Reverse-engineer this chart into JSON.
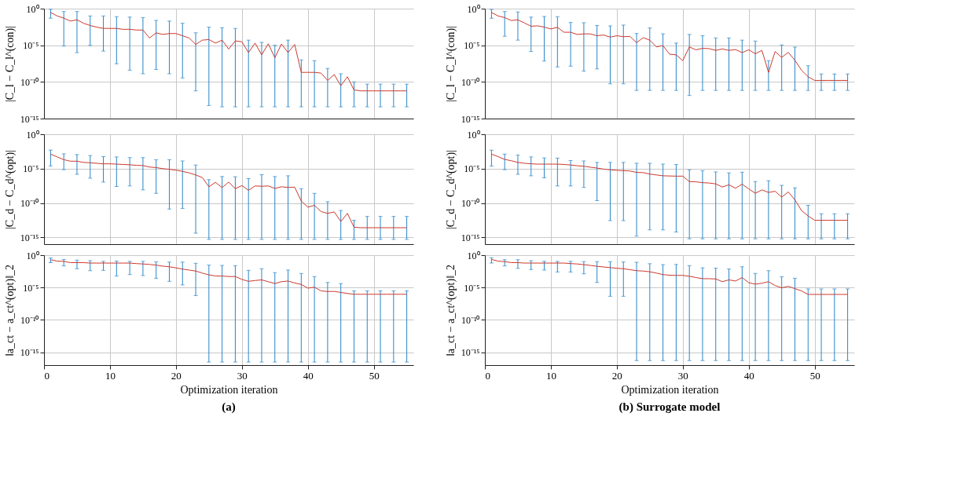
{
  "chart_data": [
    {
      "type": "line",
      "x": [
        1,
        2,
        3,
        4,
        5,
        6,
        7,
        8,
        9,
        10,
        11,
        12,
        13,
        14,
        15,
        16,
        17,
        18,
        19,
        20,
        21,
        22,
        23,
        24,
        25,
        26,
        27,
        28,
        29,
        30,
        31,
        32,
        33,
        34,
        35,
        36,
        37,
        38,
        39,
        40,
        41,
        42,
        43,
        44,
        45,
        46,
        47,
        48,
        49,
        50,
        51,
        52,
        53,
        54,
        55
      ],
      "xlim": [
        0,
        56
      ],
      "xticks": [
        0,
        10,
        20,
        30,
        40,
        50
      ],
      "ylim": [
        1e-15,
        1
      ],
      "yticks": [
        {
          "value": 1,
          "label": "10⁰"
        },
        {
          "value": 1e-05,
          "label": "10⁻⁵"
        },
        {
          "value": 1e-10,
          "label": "10⁻¹⁰"
        },
        {
          "value": 1e-15,
          "label": "10⁻¹⁵"
        }
      ],
      "log": "y",
      "grid": true,
      "tick_labels": "y",
      "ylabel": "|C_l − C_l^(con)|",
      "series": [
        {
          "color": "#cc3a2e",
          "values": [
            0.3,
            0.1,
            0.05,
            0.02,
            0.03,
            0.01,
            0.005,
            0.003,
            0.002,
            0.002,
            0.002,
            0.0015,
            0.0015,
            0.0012,
            0.0012,
            0.0001,
            0.0005,
            0.0003,
            0.0004,
            0.0004,
            0.0002,
            0.0001,
            1.3e-05,
            5e-05,
            6e-05,
            2e-05,
            5e-05,
            3e-06,
            4e-05,
            3e-05,
            1e-06,
            2e-05,
            5e-07,
            1.6e-05,
            2e-07,
            1.5e-05,
            1e-06,
            1.3e-05,
            2e-09,
            2e-09,
            2e-09,
            1.6e-09,
            1.6e-10,
            1e-09,
            3e-11,
            5e-10,
            8e-12,
            6e-12,
            6e-12,
            6e-12,
            6e-12,
            6e-12,
            6e-12,
            6e-12,
            6e-12
          ],
          "errors": [
            [
              0.05,
              0.8
            ],
            null,
            [
              8e-06,
              0.4
            ],
            null,
            [
              1e-06,
              0.4
            ],
            null,
            [
              1e-05,
              0.1
            ],
            null,
            [
              1.6e-06,
              0.1
            ],
            null,
            [
              3e-08,
              0.08
            ],
            null,
            [
              4e-09,
              0.07
            ],
            null,
            [
              1.3e-09,
              0.06
            ],
            null,
            [
              5e-09,
              0.025
            ],
            null,
            [
              1.3e-09,
              0.02
            ],
            null,
            [
              3.5e-10,
              0.01
            ],
            null,
            [
              6e-12,
              0.0005
            ],
            null,
            [
              6e-14,
              0.003
            ],
            null,
            [
              4e-14,
              0.0025
            ],
            null,
            [
              4e-14,
              0.002
            ],
            null,
            [
              4e-14,
              5e-05
            ],
            null,
            [
              4e-14,
              2.5e-05
            ],
            null,
            [
              4e-14,
              1e-05
            ],
            null,
            [
              4e-14,
              5e-05
            ],
            null,
            [
              4e-14,
              1e-07
            ],
            null,
            [
              4e-14,
              8e-08
            ],
            null,
            [
              4e-14,
              7e-09
            ],
            null,
            [
              4e-14,
              1.3e-09
            ],
            null,
            [
              4e-14,
              1e-10
            ],
            null,
            [
              4e-14,
              5e-11
            ],
            null,
            [
              4e-14,
              5e-11
            ],
            null,
            [
              4e-14,
              5e-11
            ],
            null,
            [
              4e-14,
              5e-11
            ]
          ]
        }
      ]
    },
    {
      "type": "line",
      "x": [
        1,
        2,
        3,
        4,
        5,
        6,
        7,
        8,
        9,
        10,
        11,
        12,
        13,
        14,
        15,
        16,
        17,
        18,
        19,
        20,
        21,
        22,
        23,
        24,
        25,
        26,
        27,
        28,
        29,
        30,
        31,
        32,
        33,
        34,
        35,
        36,
        37,
        38,
        39,
        40,
        41,
        42,
        43,
        44,
        45,
        46,
        47,
        48,
        49,
        50,
        51,
        52,
        53,
        54,
        55
      ],
      "xlim": [
        0,
        56
      ],
      "xticks": [
        0,
        10,
        20,
        30,
        40,
        50
      ],
      "ylim": [
        1e-15,
        1
      ],
      "yticks": [
        {
          "value": 1,
          "label": "10⁰"
        },
        {
          "value": 1e-05,
          "label": "10⁻⁵"
        },
        {
          "value": 1e-10,
          "label": "10⁻¹⁰"
        },
        {
          "value": 1e-15,
          "label": "10⁻¹⁵"
        }
      ],
      "log": "y",
      "grid": true,
      "tick_labels": "y",
      "ylabel": "|C_l − C_l^(con)|",
      "series": [
        {
          "color": "#cc3a2e",
          "values": [
            0.3,
            0.1,
            0.06,
            0.024,
            0.03,
            0.011,
            0.004,
            0.0045,
            0.003,
            0.0017,
            0.0028,
            0.0006,
            0.0006,
            0.0003,
            0.00036,
            0.00036,
            0.0002,
            0.00025,
            0.00013,
            0.0002,
            0.00015,
            0.00016,
            2.3e-05,
            0.00011,
            5e-05,
            6e-06,
            9e-06,
            6e-07,
            5e-07,
            8e-08,
            6e-06,
            2.4e-06,
            3.8e-06,
            3.5e-06,
            2e-06,
            3.2e-06,
            2e-06,
            2.6e-06,
            1e-06,
            2.4e-06,
            7e-07,
            2e-06,
            2e-09,
            1.4e-06,
            2.2e-07,
            1.1e-06,
            9e-08,
            4e-09,
            5e-10,
            1.6e-10,
            1.6e-10,
            1.6e-10,
            1.6e-10,
            1.6e-10,
            1.6e-10
          ],
          "errors": [
            [
              0.05,
              0.8
            ],
            null,
            [
              0.00017,
              0.4
            ],
            null,
            [
              5e-05,
              0.35
            ],
            null,
            [
              1.4e-06,
              0.07
            ],
            null,
            [
              7e-08,
              0.085
            ],
            null,
            [
              1.1e-08,
              0.08
            ],
            null,
            [
              1.4e-08,
              0.013
            ],
            null,
            [
              3e-09,
              0.012
            ],
            null,
            [
              6e-09,
              0.005
            ],
            null,
            [
              5.5e-11,
              0.0043
            ],
            null,
            [
              5.5e-11,
              0.0057
            ],
            null,
            [
              7e-12,
              0.0004
            ],
            null,
            [
              7e-12,
              0.0023
            ],
            null,
            [
              7e-12,
              0.00036
            ],
            null,
            [
              7e-12,
              2e-05
            ],
            null,
            [
              1.4e-12,
              0.0003
            ],
            null,
            [
              7e-12,
              0.0002
            ],
            null,
            [
              7e-12,
              0.0001
            ],
            null,
            [
              7e-12,
              0.0001
            ],
            null,
            [
              7e-12,
              5e-05
            ],
            null,
            [
              7e-12,
              3.8e-05
            ],
            null,
            [
              7e-12,
              8e-08
            ],
            null,
            [
              7e-12,
              1.1e-05
            ],
            null,
            [
              7e-12,
              5.5e-06
            ],
            null,
            [
              7e-12,
              1.6e-08
            ],
            null,
            [
              7e-12,
              1.2e-09
            ],
            null,
            [
              7e-12,
              1.2e-09
            ],
            null,
            [
              7e-12,
              1.2e-09
            ]
          ]
        }
      ]
    },
    {
      "type": "line",
      "x": [
        1,
        2,
        3,
        4,
        5,
        6,
        7,
        8,
        9,
        10,
        11,
        12,
        13,
        14,
        15,
        16,
        17,
        18,
        19,
        20,
        21,
        22,
        23,
        24,
        25,
        26,
        27,
        28,
        29,
        30,
        31,
        32,
        33,
        34,
        35,
        36,
        37,
        38,
        39,
        40,
        41,
        42,
        43,
        44,
        45,
        46,
        47,
        48,
        49,
        50,
        51,
        52,
        53,
        54,
        55
      ],
      "xlim": [
        0,
        56
      ],
      "xticks": [
        0,
        10,
        20,
        30,
        40,
        50
      ],
      "ylim": [
        1e-16,
        1
      ],
      "yticks": [
        {
          "value": 1,
          "label": "10⁰"
        },
        {
          "value": 1e-05,
          "label": "10⁻⁵"
        },
        {
          "value": 1e-10,
          "label": "10⁻¹⁰"
        },
        {
          "value": 1e-15,
          "label": "10⁻¹⁵"
        }
      ],
      "log": "y",
      "grid": true,
      "tick_labels": "y",
      "ylabel": "|C_d − C_d^(opt)|",
      "series": [
        {
          "color": "#cc3a2e",
          "values": [
            0.0013,
            0.0005,
            0.0002,
            0.00012,
            0.00012,
            8e-05,
            7e-05,
            6e-05,
            5e-05,
            5e-05,
            4.5e-05,
            4e-05,
            3.6e-05,
            3e-05,
            2.8e-05,
            1.7e-05,
            1.4e-05,
            1e-05,
            8e-06,
            6e-06,
            4e-06,
            2.4e-06,
            1.2e-06,
            5e-07,
            2.3e-08,
            1e-07,
            1.7e-08,
            1.1e-07,
            1.2e-08,
            3.4e-08,
            7e-09,
            3e-08,
            2.7e-08,
            3e-08,
            1.3e-08,
            2.3e-08,
            1.8e-08,
            2e-08,
            1.9e-10,
            2.5e-11,
            4.5e-11,
            5.6e-12,
            3e-12,
            5e-12,
            2e-13,
            3e-12,
            3e-14,
            2.5e-14,
            2.5e-14,
            2.5e-14,
            2.5e-14,
            2.5e-14,
            2.5e-14,
            2.5e-14,
            2.5e-14
          ],
          "errors": [
            [
              2.5e-05,
              0.005
            ],
            null,
            [
              7e-06,
              0.0014
            ],
            null,
            [
              1.5e-06,
              0.0011
            ],
            null,
            [
              4e-07,
              0.0008
            ],
            null,
            [
              1.1e-07,
              0.00055
            ],
            null,
            [
              2.5e-08,
              0.0005
            ],
            null,
            [
              3e-08,
              0.0004
            ],
            null,
            [
              8e-09,
              0.0004
            ],
            null,
            [
              2.5e-09,
              0.0002
            ],
            null,
            [
              1.3e-11,
              0.0002
            ],
            null,
            [
              1.6e-11,
              0.00013
            ],
            null,
            [
              4e-15,
              3.3e-05
            ],
            null,
            [
              5e-16,
              2.5e-07
            ],
            null,
            [
              5e-16,
              7e-07
            ],
            null,
            [
              5e-16,
              6.5e-07
            ],
            null,
            [
              5e-16,
              3.5e-07
            ],
            null,
            [
              5e-16,
              1.3e-06
            ],
            null,
            [
              5e-16,
              7e-07
            ],
            null,
            [
              5e-16,
              9e-07
            ],
            null,
            [
              5e-16,
              1.2e-08
            ],
            null,
            [
              5e-16,
              2.5e-09
            ],
            null,
            [
              5e-16,
              1.5e-10
            ],
            null,
            [
              5e-16,
              8e-12
            ],
            null,
            [
              5e-16,
              3e-13
            ],
            null,
            [
              5e-16,
              1.1e-12
            ],
            null,
            [
              5e-16,
              1.1e-12
            ],
            null,
            [
              5e-16,
              1.1e-12
            ],
            null,
            [
              5e-16,
              1.1e-12
            ]
          ]
        }
      ]
    },
    {
      "type": "line",
      "x": [
        1,
        2,
        3,
        4,
        5,
        6,
        7,
        8,
        9,
        10,
        11,
        12,
        13,
        14,
        15,
        16,
        17,
        18,
        19,
        20,
        21,
        22,
        23,
        24,
        25,
        26,
        27,
        28,
        29,
        30,
        31,
        32,
        33,
        34,
        35,
        36,
        37,
        38,
        39,
        40,
        41,
        42,
        43,
        44,
        45,
        46,
        47,
        48,
        49,
        50,
        51,
        52,
        53,
        54,
        55
      ],
      "xlim": [
        0,
        56
      ],
      "xticks": [
        0,
        10,
        20,
        30,
        40,
        50
      ],
      "ylim": [
        1e-16,
        1
      ],
      "yticks": [
        {
          "value": 1,
          "label": "10⁰"
        },
        {
          "value": 1e-05,
          "label": "10⁻⁵"
        },
        {
          "value": 1e-10,
          "label": "10⁻¹⁰"
        },
        {
          "value": 1e-15,
          "label": "10⁻¹⁵"
        }
      ],
      "log": "y",
      "grid": true,
      "tick_labels": "y",
      "ylabel": "|C_d − C_d^(opt)|",
      "series": [
        {
          "color": "#cc3a2e",
          "values": [
            0.0013,
            0.00055,
            0.00022,
            0.00014,
            8e-05,
            6e-05,
            5e-05,
            4.5e-05,
            4.5e-05,
            4.5e-05,
            4.5e-05,
            4e-05,
            3.4e-05,
            2.6e-05,
            2.2e-05,
            1.6e-05,
            1.2e-05,
            8.5e-06,
            6.7e-06,
            5.7e-06,
            5e-06,
            4.5e-06,
            2.8e-06,
            2.6e-06,
            1.6e-06,
            1.2e-06,
            9e-07,
            8.5e-07,
            8e-07,
            8e-07,
            1.3e-07,
            1.2e-07,
            9e-08,
            8e-08,
            6e-08,
            2.1e-08,
            4.4e-08,
            1.4e-08,
            5.5e-08,
            1.1e-08,
            2.6e-09,
            8e-09,
            3.4e-09,
            5e-09,
            7e-10,
            4e-09,
            2.8e-10,
            8e-12,
            1.3e-12,
            3e-13,
            3e-13,
            3e-13,
            3e-13,
            3e-13,
            3e-13
          ],
          "errors": [
            [
              2.4e-05,
              0.005
            ],
            null,
            [
              7e-06,
              0.0013
            ],
            null,
            [
              1.5e-06,
              0.00095
            ],
            null,
            [
              9e-07,
              0.0005
            ],
            null,
            [
              4.5e-07,
              0.00036
            ],
            null,
            [
              3e-08,
              0.00034
            ],
            null,
            [
              3e-08,
              0.00015
            ],
            null,
            [
              1.8e-08,
              0.00013
            ],
            null,
            [
              2.2e-10,
              8e-05
            ],
            null,
            [
              2.7e-13,
              8e-05
            ],
            null,
            [
              2.7e-13,
              8e-05
            ],
            null,
            [
              1.5e-15,
              6e-05
            ],
            null,
            [
              1.2e-14,
              6e-05
            ],
            null,
            [
              1.2e-14,
              4.5e-05
            ],
            null,
            [
              6e-15,
              4e-05
            ],
            null,
            [
              6e-16,
              6.7e-06
            ],
            null,
            [
              6e-16,
              5e-06
            ],
            null,
            [
              6e-16,
              3.3e-06
            ],
            null,
            [
              6e-16,
              2.4e-06
            ],
            null,
            [
              6e-16,
              3e-06
            ],
            null,
            [
              6e-16,
              1.3e-07
            ],
            null,
            [
              6e-16,
              1.7e-07
            ],
            null,
            [
              6e-16,
              3.7e-08
            ],
            null,
            [
              6e-16,
              1.6e-08
            ],
            null,
            [
              6e-16,
              4.5e-11
            ],
            null,
            [
              6e-16,
              2.7e-12
            ],
            null,
            [
              6e-16,
              2.7e-12
            ],
            null,
            [
              6e-16,
              2.7e-12
            ]
          ]
        }
      ]
    },
    {
      "type": "line",
      "x": [
        1,
        2,
        3,
        4,
        5,
        6,
        7,
        8,
        9,
        10,
        11,
        12,
        13,
        14,
        15,
        16,
        17,
        18,
        19,
        20,
        21,
        22,
        23,
        24,
        25,
        26,
        27,
        28,
        29,
        30,
        31,
        32,
        33,
        34,
        35,
        36,
        37,
        38,
        39,
        40,
        41,
        42,
        43,
        44,
        45,
        46,
        47,
        48,
        49,
        50,
        51,
        52,
        53,
        54,
        55
      ],
      "xlim": [
        0,
        56
      ],
      "xticks": [
        0,
        10,
        20,
        30,
        40,
        50
      ],
      "ylim": [
        1e-17,
        1
      ],
      "yticks": [
        {
          "value": 1,
          "label": "10⁰"
        },
        {
          "value": 1e-05,
          "label": "10⁻⁵"
        },
        {
          "value": 1e-10,
          "label": "10⁻¹⁰"
        },
        {
          "value": 1e-15,
          "label": "10⁻¹⁵"
        }
      ],
      "log": "y",
      "grid": true,
      "ylabel": "‖a_ct − a_ct^(opt)‖_2",
      "xlabel": "Optimization iteration",
      "annotations": [
        "(a)"
      ],
      "series": [
        {
          "color": "#cc3a2e",
          "values": [
            0.2,
            0.12,
            0.11,
            0.07,
            0.07,
            0.07,
            0.06,
            0.06,
            0.06,
            0.06,
            0.06,
            0.06,
            0.06,
            0.05,
            0.044,
            0.037,
            0.029,
            0.02,
            0.016,
            0.011,
            0.007,
            0.005,
            0.0035,
            0.0017,
            0.0009,
            0.0006,
            0.0006,
            0.0005,
            0.0005,
            0.00018,
            9e-05,
            0.00012,
            0.00015,
            8e-05,
            4e-05,
            8e-05,
            0.0001,
            5e-05,
            3e-05,
            8e-06,
            1.1e-05,
            3e-06,
            2.4e-06,
            2.5e-06,
            1.7e-06,
            1.2e-06,
            9e-07,
            9e-07,
            9e-07,
            9e-07,
            9e-07,
            9e-07,
            9e-07,
            9e-07,
            9e-07
          ],
          "errors": [
            [
              0.07,
              0.36
            ],
            null,
            [
              0.022,
              0.22
            ],
            null,
            [
              0.008,
              0.17
            ],
            null,
            [
              0.004,
              0.14
            ],
            null,
            [
              0.0045,
              0.11
            ],
            null,
            [
              0.0006,
              0.12
            ],
            null,
            [
              0.001,
              0.11
            ],
            null,
            [
              0.0007,
              0.11
            ],
            null,
            [
              0.00027,
              0.09
            ],
            null,
            [
              9e-05,
              0.085
            ],
            null,
            [
              2.5e-05,
              0.085
            ],
            null,
            [
              5.6e-07,
              0.056
            ],
            null,
            [
              3e-17,
              0.029
            ],
            null,
            [
              3e-17,
              0.026
            ],
            null,
            [
              3e-17,
              0.024
            ],
            null,
            [
              3e-17,
              0.0045
            ],
            null,
            [
              3e-17,
              0.008
            ],
            null,
            [
              3e-17,
              0.002
            ],
            null,
            [
              3e-17,
              0.005
            ],
            null,
            [
              3e-17,
              0.0015
            ],
            null,
            [
              3e-17,
              0.0005
            ],
            null,
            [
              3e-17,
              6e-05
            ],
            null,
            [
              3e-17,
              4e-05
            ],
            null,
            [
              3e-17,
              3e-06
            ],
            null,
            [
              3e-17,
              3e-06
            ],
            null,
            [
              3e-17,
              3e-06
            ],
            null,
            [
              3e-17,
              3e-06
            ],
            null,
            [
              3e-17,
              3e-06
            ]
          ]
        }
      ]
    },
    {
      "type": "line",
      "x": [
        1,
        2,
        3,
        4,
        5,
        6,
        7,
        8,
        9,
        10,
        11,
        12,
        13,
        14,
        15,
        16,
        17,
        18,
        19,
        20,
        21,
        22,
        23,
        24,
        25,
        26,
        27,
        28,
        29,
        30,
        31,
        32,
        33,
        34,
        35,
        36,
        37,
        38,
        39,
        40,
        41,
        42,
        43,
        44,
        45,
        46,
        47,
        48,
        49,
        50,
        51,
        52,
        53,
        54,
        55
      ],
      "xlim": [
        0,
        56
      ],
      "xticks": [
        0,
        10,
        20,
        30,
        40,
        50
      ],
      "ylim": [
        1e-17,
        1
      ],
      "yticks": [
        {
          "value": 1,
          "label": "10⁰"
        },
        {
          "value": 1e-05,
          "label": "10⁻⁵"
        },
        {
          "value": 1e-10,
          "label": "10⁻¹⁰"
        },
        {
          "value": 1e-15,
          "label": "10⁻¹⁵"
        }
      ],
      "log": "y",
      "grid": true,
      "ylabel": "‖a_ct − a_ct^(opt)‖_2",
      "xlabel": "Optimization iteration",
      "annotations": [
        "(b) Surrogate model"
      ],
      "series": [
        {
          "color": "#cc3a2e",
          "values": [
            0.22,
            0.12,
            0.1,
            0.07,
            0.07,
            0.06,
            0.06,
            0.06,
            0.06,
            0.06,
            0.06,
            0.06,
            0.05,
            0.044,
            0.034,
            0.026,
            0.019,
            0.015,
            0.012,
            0.0095,
            0.008,
            0.0057,
            0.004,
            0.0035,
            0.0027,
            0.0017,
            0.001,
            0.0008,
            0.00075,
            0.00075,
            0.00054,
            0.00035,
            0.00023,
            0.00023,
            0.00021,
            8e-05,
            0.00015,
            0.0001,
            0.00035,
            5.5e-05,
            3.3e-05,
            4.6e-05,
            8e-05,
            2e-05,
            9e-06,
            1.5e-05,
            6.6e-06,
            3e-06,
            8.5e-07,
            8.5e-07,
            8.5e-07,
            8.5e-07,
            8.5e-07,
            8.5e-07,
            8.5e-07
          ],
          "errors": [
            [
              0.06,
              0.4
            ],
            null,
            [
              0.022,
              0.2
            ],
            null,
            [
              0.009,
              0.2
            ],
            null,
            [
              0.006,
              0.14
            ],
            null,
            [
              0.005,
              0.11
            ],
            null,
            [
              0.0025,
              0.11
            ],
            null,
            [
              0.0025,
              0.11
            ],
            null,
            [
              0.0013,
              0.1
            ],
            null,
            [
              6e-05,
              0.1
            ],
            null,
            [
              4.4e-07,
              0.1
            ],
            null,
            [
              4.4e-07,
              0.09
            ],
            null,
            [
              5e-17,
              0.08
            ],
            null,
            [
              5e-17,
              0.048
            ],
            null,
            [
              5e-17,
              0.034
            ],
            null,
            [
              5e-17,
              0.037
            ],
            null,
            [
              5e-17,
              0.024
            ],
            null,
            [
              5e-17,
              0.011
            ],
            null,
            [
              5e-17,
              0.01
            ],
            null,
            [
              5e-17,
              0.0074
            ],
            null,
            [
              5e-17,
              0.016
            ],
            null,
            [
              5e-17,
              0.0015
            ],
            null,
            [
              5e-17,
              0.004
            ],
            null,
            [
              5e-17,
              0.00045
            ],
            null,
            [
              5e-17,
              0.00027
            ],
            null,
            [
              5e-17,
              6e-06
            ],
            null,
            [
              5e-17,
              6e-06
            ],
            null,
            [
              5e-17,
              6e-06
            ],
            null,
            [
              5e-17,
              6e-06
            ]
          ]
        }
      ]
    }
  ]
}
